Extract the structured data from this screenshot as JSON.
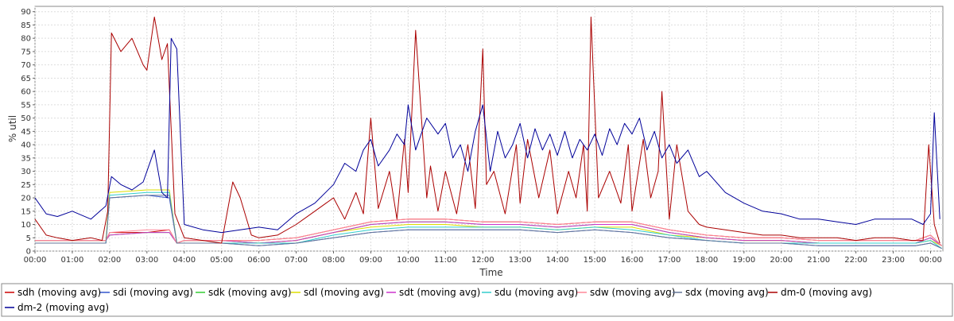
{
  "chart_data": {
    "type": "line",
    "xlabel": "Time",
    "ylabel": "% util",
    "ylim": [
      0,
      92
    ],
    "xlim": [
      0,
      24.33
    ],
    "x_ticks": [
      "00:00",
      "01:00",
      "02:00",
      "03:00",
      "04:00",
      "05:00",
      "06:00",
      "07:00",
      "08:00",
      "09:00",
      "10:00",
      "11:00",
      "12:00",
      "13:00",
      "14:00",
      "15:00",
      "16:00",
      "17:00",
      "18:00",
      "19:00",
      "20:00",
      "21:00",
      "22:00",
      "23:00",
      "00:00"
    ],
    "y_ticks": [
      0,
      5,
      10,
      15,
      20,
      25,
      30,
      35,
      40,
      45,
      50,
      55,
      60,
      65,
      70,
      75,
      80,
      85,
      90
    ],
    "grid": true,
    "legend": "bottom",
    "series": [
      {
        "name": "sdh (moving avg)",
        "color": "#cc0000",
        "x": [
          0,
          1,
          1.9,
          2,
          3,
          3.6,
          3.8,
          4,
          5,
          6,
          7,
          8,
          9,
          10,
          11,
          12,
          13,
          14,
          15,
          16,
          17,
          18,
          19,
          20,
          21,
          22,
          23,
          23.6,
          24,
          24.3
        ],
        "y": [
          4,
          4,
          4,
          7,
          7,
          8,
          3,
          4,
          4,
          4,
          5,
          8,
          11,
          12,
          12,
          11,
          11,
          10,
          11,
          11,
          8,
          6,
          5,
          5,
          4,
          4,
          4,
          4,
          6,
          2
        ]
      },
      {
        "name": "sdi (moving avg)",
        "color": "#3355cc",
        "x": [
          0,
          1,
          1.9,
          2,
          3,
          3.6,
          3.8,
          4,
          5,
          6,
          7,
          8,
          9,
          10,
          11,
          12,
          13,
          14,
          15,
          16,
          17,
          18,
          19,
          20,
          21,
          22,
          23,
          23.6,
          24,
          24.3
        ],
        "y": [
          3,
          3,
          3,
          20,
          21,
          20,
          3,
          3,
          3,
          2,
          3,
          5,
          7,
          8,
          8,
          8,
          8,
          7,
          8,
          7,
          5,
          4,
          3,
          3,
          2,
          2,
          2,
          2,
          3,
          1
        ]
      },
      {
        "name": "sdk (moving avg)",
        "color": "#33cc33",
        "x": [
          0,
          1,
          1.9,
          2,
          3,
          3.6,
          3.8,
          4,
          5,
          6,
          7,
          8,
          9,
          10,
          11,
          12,
          13,
          14,
          15,
          16,
          17,
          18,
          19,
          20,
          21,
          22,
          23,
          23.6,
          24,
          24.3
        ],
        "y": [
          4,
          4,
          4,
          6,
          7,
          7,
          3,
          4,
          4,
          3,
          4,
          7,
          10,
          11,
          11,
          10,
          10,
          9,
          10,
          10,
          7,
          5,
          4,
          4,
          3,
          3,
          3,
          3,
          5,
          2
        ]
      },
      {
        "name": "sdl (moving avg)",
        "color": "#dddd00",
        "x": [
          0,
          1,
          1.9,
          2,
          3,
          3.6,
          3.8,
          4,
          5,
          6,
          7,
          8,
          9,
          10,
          11,
          12,
          13,
          14,
          15,
          16,
          17,
          18,
          19,
          20,
          21,
          22,
          23,
          23.6,
          24,
          24.3
        ],
        "y": [
          4,
          4,
          4,
          22,
          23,
          23,
          3,
          4,
          4,
          3,
          4,
          7,
          9,
          10,
          10,
          9,
          9,
          8,
          9,
          9,
          6,
          5,
          4,
          4,
          3,
          3,
          3,
          3,
          4,
          2
        ]
      },
      {
        "name": "sdt (moving avg)",
        "color": "#cc33cc",
        "x": [
          0,
          1,
          1.9,
          2,
          3,
          3.6,
          3.8,
          4,
          5,
          6,
          7,
          8,
          9,
          10,
          11,
          12,
          13,
          14,
          15,
          16,
          17,
          18,
          19,
          20,
          21,
          22,
          23,
          23.6,
          24,
          24.3
        ],
        "y": [
          4,
          4,
          4,
          6,
          7,
          7,
          3,
          4,
          4,
          3,
          4,
          7,
          10,
          11,
          11,
          10,
          10,
          9,
          10,
          10,
          7,
          5,
          4,
          4,
          3,
          3,
          3,
          3,
          5,
          2
        ]
      },
      {
        "name": "sdu (moving avg)",
        "color": "#33cccc",
        "x": [
          0,
          1,
          1.9,
          2,
          3,
          3.6,
          3.8,
          4,
          5,
          6,
          7,
          8,
          9,
          10,
          11,
          12,
          13,
          14,
          15,
          16,
          17,
          18,
          19,
          20,
          21,
          22,
          23,
          23.6,
          24,
          24.3
        ],
        "y": [
          3,
          3,
          3,
          21,
          22,
          22,
          3,
          3,
          3,
          3,
          3,
          6,
          8,
          9,
          9,
          9,
          9,
          8,
          9,
          8,
          6,
          4,
          3,
          3,
          3,
          3,
          3,
          3,
          4,
          1
        ]
      },
      {
        "name": "sdw (moving avg)",
        "color": "#ff8899",
        "x": [
          0,
          1,
          1.9,
          2,
          3,
          3.6,
          3.8,
          4,
          5,
          6,
          7,
          8,
          9,
          10,
          11,
          12,
          13,
          14,
          15,
          16,
          17,
          18,
          19,
          20,
          21,
          22,
          23,
          23.6,
          24,
          24.3
        ],
        "y": [
          4,
          4,
          4,
          7,
          8,
          8,
          3,
          4,
          4,
          4,
          5,
          8,
          11,
          12,
          12,
          11,
          11,
          10,
          11,
          11,
          8,
          6,
          5,
          5,
          4,
          4,
          4,
          4,
          6,
          2
        ]
      },
      {
        "name": "sdx (moving avg)",
        "color": "#667799",
        "x": [
          0,
          1,
          1.9,
          2,
          3,
          3.6,
          3.8,
          4,
          5,
          6,
          7,
          8,
          9,
          10,
          11,
          12,
          13,
          14,
          15,
          16,
          17,
          18,
          19,
          20,
          21,
          22,
          23,
          23.6,
          24,
          24.3
        ],
        "y": [
          3,
          3,
          3,
          20,
          21,
          21,
          3,
          3,
          3,
          2,
          3,
          5,
          7,
          8,
          8,
          8,
          8,
          7,
          8,
          7,
          5,
          4,
          3,
          3,
          2,
          2,
          2,
          2,
          3,
          1
        ]
      },
      {
        "name": "dm-0 (moving avg)",
        "color": "#aa0000",
        "x": [
          0,
          0.3,
          0.6,
          1,
          1.5,
          1.8,
          1.95,
          2.05,
          2.3,
          2.6,
          2.9,
          3.0,
          3.2,
          3.4,
          3.55,
          3.75,
          4.0,
          4.5,
          5.0,
          5.3,
          5.5,
          5.8,
          6.0,
          6.5,
          7.0,
          7.5,
          7.8,
          8.0,
          8.3,
          8.6,
          8.8,
          9.0,
          9.2,
          9.5,
          9.7,
          9.9,
          10.0,
          10.2,
          10.5,
          10.6,
          10.8,
          11.0,
          11.3,
          11.6,
          11.8,
          12.0,
          12.1,
          12.3,
          12.6,
          12.9,
          13.0,
          13.2,
          13.5,
          13.8,
          14.0,
          14.3,
          14.5,
          14.7,
          14.8,
          14.9,
          15.1,
          15.4,
          15.7,
          15.9,
          16.0,
          16.3,
          16.5,
          16.7,
          16.8,
          17.0,
          17.2,
          17.5,
          17.8,
          18.0,
          18.5,
          19.0,
          19.5,
          20.0,
          20.5,
          21.0,
          21.5,
          22.0,
          22.5,
          23.0,
          23.5,
          23.8,
          23.95,
          24.1,
          24.25
        ],
        "y": [
          12,
          6,
          5,
          4,
          5,
          4,
          15,
          82,
          75,
          80,
          70,
          68,
          88,
          72,
          78,
          14,
          5,
          4,
          3,
          26,
          20,
          6,
          5,
          6,
          10,
          15,
          18,
          20,
          12,
          22,
          14,
          50,
          16,
          30,
          12,
          42,
          22,
          83,
          20,
          32,
          15,
          30,
          14,
          40,
          16,
          76,
          25,
          30,
          14,
          40,
          18,
          42,
          20,
          38,
          14,
          30,
          20,
          40,
          15,
          88,
          20,
          30,
          18,
          40,
          15,
          42,
          20,
          30,
          60,
          12,
          40,
          15,
          10,
          9,
          8,
          7,
          6,
          6,
          5,
          5,
          5,
          4,
          5,
          5,
          4,
          4,
          40,
          10,
          3
        ]
      },
      {
        "name": "dm-2 (moving avg)",
        "color": "#000099",
        "x": [
          0,
          0.3,
          0.6,
          1,
          1.5,
          1.9,
          2.05,
          2.3,
          2.6,
          2.9,
          3.0,
          3.2,
          3.4,
          3.55,
          3.65,
          3.8,
          4.0,
          4.5,
          5.0,
          5.5,
          6.0,
          6.5,
          7.0,
          7.5,
          8.0,
          8.3,
          8.6,
          8.8,
          9.0,
          9.2,
          9.5,
          9.7,
          9.9,
          10.0,
          10.2,
          10.5,
          10.8,
          11.0,
          11.2,
          11.4,
          11.6,
          11.8,
          12.0,
          12.2,
          12.4,
          12.6,
          12.8,
          13.0,
          13.2,
          13.4,
          13.6,
          13.8,
          14.0,
          14.2,
          14.4,
          14.6,
          14.8,
          15.0,
          15.2,
          15.4,
          15.6,
          15.8,
          16.0,
          16.2,
          16.4,
          16.6,
          16.8,
          17.0,
          17.2,
          17.5,
          17.8,
          18.0,
          18.5,
          19.0,
          19.5,
          20.0,
          20.5,
          21.0,
          21.5,
          22.0,
          22.5,
          23.0,
          23.5,
          23.8,
          24.0,
          24.1,
          24.25
        ],
        "y": [
          20,
          14,
          13,
          15,
          12,
          17,
          28,
          25,
          23,
          26,
          30,
          38,
          22,
          20,
          80,
          76,
          10,
          8,
          7,
          8,
          9,
          8,
          14,
          18,
          25,
          33,
          30,
          38,
          42,
          32,
          38,
          44,
          40,
          55,
          38,
          50,
          44,
          48,
          35,
          40,
          30,
          45,
          55,
          30,
          45,
          35,
          40,
          48,
          35,
          46,
          38,
          44,
          36,
          45,
          35,
          42,
          38,
          44,
          36,
          46,
          40,
          48,
          44,
          50,
          38,
          45,
          35,
          40,
          33,
          38,
          28,
          30,
          22,
          18,
          15,
          14,
          12,
          12,
          11,
          10,
          12,
          12,
          12,
          10,
          14,
          52,
          12
        ]
      }
    ]
  }
}
